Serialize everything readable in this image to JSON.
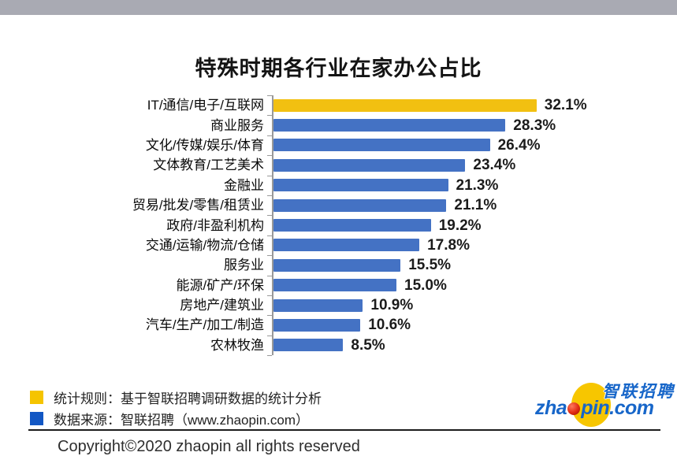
{
  "header": {
    "title": "特殊时期各行业在家办公占比"
  },
  "chart_data": {
    "type": "bar",
    "orientation": "horizontal",
    "title": "特殊时期各行业在家办公占比",
    "xlabel": "",
    "ylabel": "",
    "xlim": [
      0,
      35
    ],
    "grid": false,
    "categories": [
      "IT/通信/电子/互联网",
      "商业服务",
      "文化/传媒/娱乐/体育",
      "文体教育/工艺美术",
      "金融业",
      "贸易/批发/零售/租赁业",
      "政府/非盈利机构",
      "交通/运输/物流/仓储",
      "服务业",
      "能源/矿产/环保",
      "房地产/建筑业",
      "汽车/生产/加工/制造",
      "农林牧渔"
    ],
    "values": [
      32.1,
      28.3,
      26.4,
      23.4,
      21.3,
      21.1,
      19.2,
      17.8,
      15.5,
      15.0,
      10.9,
      10.6,
      8.5
    ],
    "value_labels": [
      "32.1%",
      "28.3%",
      "26.4%",
      "23.4%",
      "21.3%",
      "21.1%",
      "19.2%",
      "17.8%",
      "15.5%",
      "15.0%",
      "10.9%",
      "10.6%",
      "8.5%"
    ],
    "highlight_index": 0
  },
  "legend": [
    {
      "swatch_color": "#F5C400",
      "label": "统计规则：基于智联招聘调研数据的统计分析"
    },
    {
      "swatch_color": "#1257C4",
      "label": "数据来源：智联招聘（www.zhaopin.com）"
    }
  ],
  "footer": {
    "copyright": "Copyright©2020 zhaopin all rights reserved"
  },
  "logo": {
    "cn": "智联招聘",
    "en_pre": "zha",
    "en_post": "pin.com"
  },
  "colors": {
    "bar_blue": "#4472C4",
    "bar_gold": "#F2C011",
    "legend_gold": "#F5C400",
    "legend_blue": "#1257C4",
    "top_bar_gray": "#A9AAB3",
    "axis_gray": "#999999",
    "logo_blue": "#1766C9",
    "logo_gold": "#F7C600",
    "logo_red": "#E02A12"
  }
}
